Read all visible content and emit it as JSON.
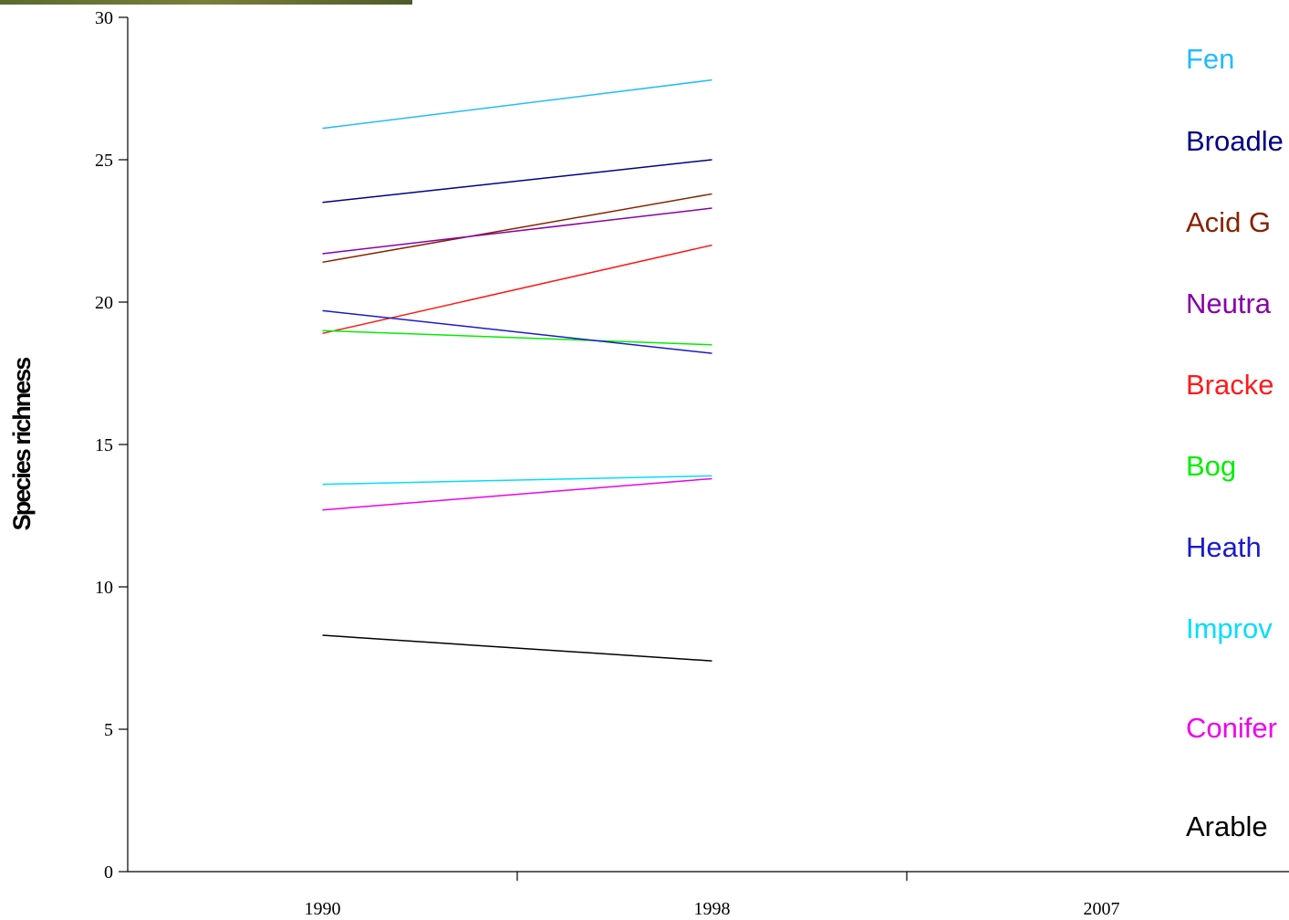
{
  "chart_data": {
    "type": "line",
    "y_label": "Species richness",
    "categories": [
      "1990",
      "1998",
      "2007"
    ],
    "ylim": [
      0,
      30
    ],
    "yticks": [
      0,
      5,
      10,
      15,
      20,
      25,
      30
    ],
    "series": [
      {
        "name": "Fen",
        "color": "#22bbff",
        "values": [
          26.1,
          27.8,
          null
        ]
      },
      {
        "name": "Broadle",
        "color": "#000088",
        "values": [
          23.5,
          25.0,
          null
        ]
      },
      {
        "name": "Acid G",
        "color": "#882200",
        "values": [
          21.4,
          23.8,
          null
        ]
      },
      {
        "name": "Neutra",
        "color": "#8800aa",
        "values": [
          21.7,
          23.3,
          null
        ]
      },
      {
        "name": "Bracke",
        "color": "#ff1a1a",
        "values": [
          18.9,
          22.0,
          null
        ]
      },
      {
        "name": "Bog",
        "color": "#00ee00",
        "values": [
          19.0,
          18.5,
          null
        ]
      },
      {
        "name": "Heath",
        "color": "#1a1acc",
        "values": [
          19.7,
          18.2,
          null
        ]
      },
      {
        "name": "Improv",
        "color": "#00ddff",
        "values": [
          13.6,
          13.9,
          null
        ]
      },
      {
        "name": "Conifer",
        "color": "#ee00ee",
        "values": [
          12.7,
          13.8,
          null
        ]
      },
      {
        "name": "Arable",
        "color": "#000000",
        "values": [
          8.3,
          7.4,
          null
        ]
      }
    ]
  }
}
